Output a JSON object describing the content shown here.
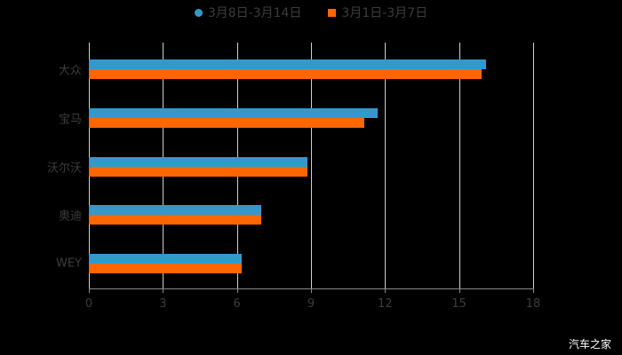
{
  "chart_data": {
    "type": "bar",
    "orientation": "horizontal",
    "title": "",
    "categories": [
      "大众",
      "宝马",
      "沃尔沃",
      "奥迪",
      "WEY"
    ],
    "series": [
      {
        "name": "3月8日-3月14日",
        "color": "#3399cc",
        "values": [
          16.1,
          11.7,
          8.85,
          7.0,
          6.2
        ]
      },
      {
        "name": "3月1日-3月7日",
        "color": "#ff6600",
        "values": [
          15.9,
          11.15,
          8.85,
          7.0,
          6.2
        ]
      }
    ],
    "xlabel": "",
    "ylabel": "",
    "xlim": [
      0,
      18
    ],
    "xticks": [
      "0",
      "3",
      "6",
      "9",
      "12",
      "15",
      "18"
    ],
    "grid": true,
    "legend_position": "top"
  },
  "legend": {
    "items": [
      {
        "label": "3月8日-3月14日",
        "color": "#3399cc",
        "shape": "circle"
      },
      {
        "label": "3月1日-3月7日",
        "color": "#ff6600",
        "shape": "square"
      }
    ]
  },
  "watermark": "汽车之家"
}
